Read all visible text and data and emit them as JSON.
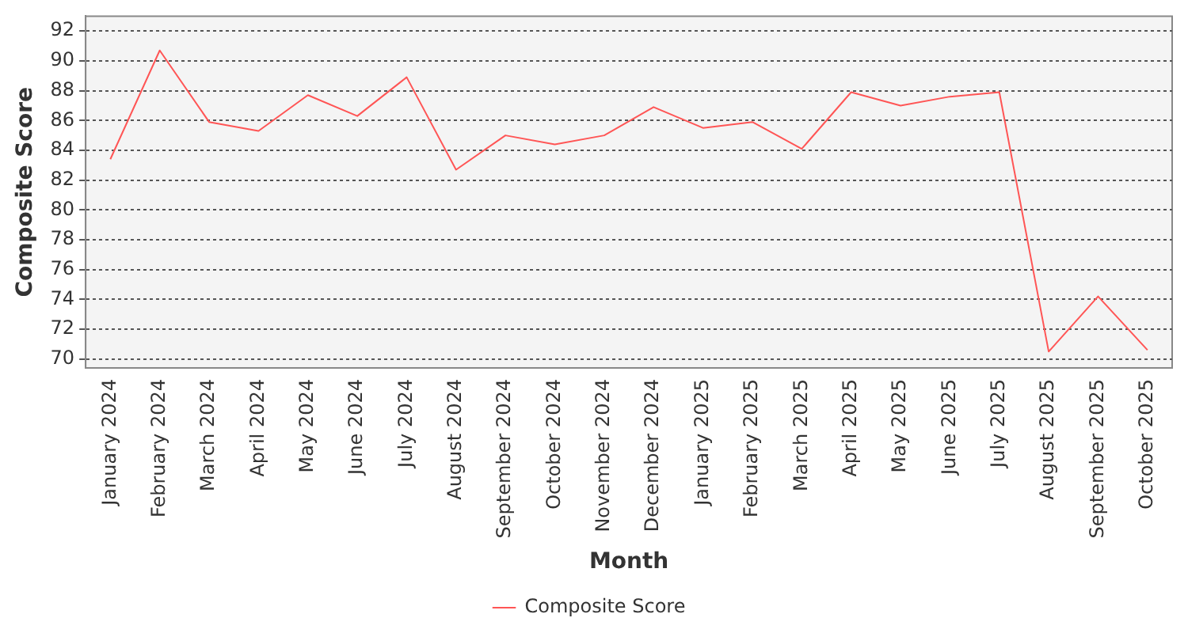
{
  "chart_data": {
    "type": "line",
    "xlabel": "Month",
    "ylabel": "Composite Score",
    "categories": [
      "January 2024",
      "February 2024",
      "March 2024",
      "April 2024",
      "May 2024",
      "June 2024",
      "July 2024",
      "August 2024",
      "September 2024",
      "October 2024",
      "November 2024",
      "December 2024",
      "January 2025",
      "February 2025",
      "March 2025",
      "April 2025",
      "May 2025",
      "June 2025",
      "July 2025",
      "August 2025",
      "September 2025",
      "October 2025"
    ],
    "series": [
      {
        "name": "Composite Score",
        "color": "#ff5555",
        "values": [
          83.4,
          90.7,
          85.9,
          85.3,
          87.7,
          86.3,
          88.9,
          82.7,
          85.0,
          84.4,
          85.0,
          86.9,
          85.5,
          85.9,
          84.1,
          87.9,
          87.0,
          87.6,
          87.9,
          70.5,
          74.2,
          70.6
        ]
      }
    ],
    "ylim": [
      69.4,
      93
    ],
    "yticks": [
      70,
      72,
      74,
      76,
      78,
      80,
      82,
      84,
      86,
      88,
      90,
      92
    ],
    "grid": "y",
    "legend": "bottom",
    "marker": "none",
    "line_style": "solid"
  }
}
